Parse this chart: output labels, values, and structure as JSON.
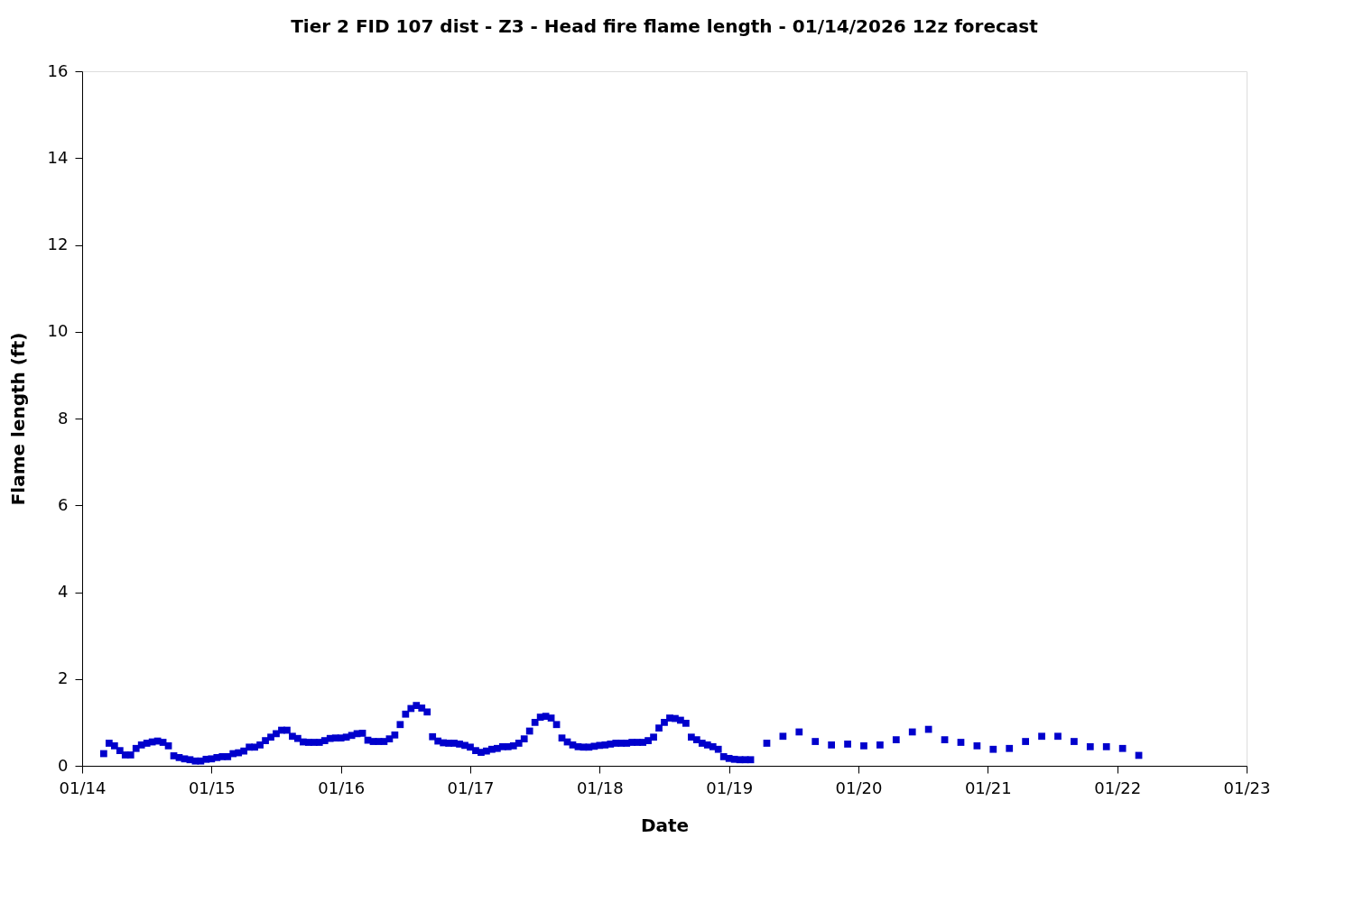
{
  "chart_data": {
    "type": "scatter",
    "title": "Tier 2 FID 107 dist - Z3 - Head fire flame length - 01/14/2026 12z forecast",
    "xlabel": "Date",
    "ylabel": "Flame length (ft)",
    "x": [
      "2026-01-14T04:00",
      "2026-01-14T05:00",
      "2026-01-14T06:00",
      "2026-01-14T07:00",
      "2026-01-14T08:00",
      "2026-01-14T09:00",
      "2026-01-14T10:00",
      "2026-01-14T11:00",
      "2026-01-14T12:00",
      "2026-01-14T13:00",
      "2026-01-14T14:00",
      "2026-01-14T15:00",
      "2026-01-14T16:00",
      "2026-01-14T17:00",
      "2026-01-14T18:00",
      "2026-01-14T19:00",
      "2026-01-14T20:00",
      "2026-01-14T21:00",
      "2026-01-14T22:00",
      "2026-01-14T23:00",
      "2026-01-15T00:00",
      "2026-01-15T01:00",
      "2026-01-15T02:00",
      "2026-01-15T03:00",
      "2026-01-15T04:00",
      "2026-01-15T05:00",
      "2026-01-15T06:00",
      "2026-01-15T07:00",
      "2026-01-15T08:00",
      "2026-01-15T09:00",
      "2026-01-15T10:00",
      "2026-01-15T11:00",
      "2026-01-15T12:00",
      "2026-01-15T13:00",
      "2026-01-15T14:00",
      "2026-01-15T15:00",
      "2026-01-15T16:00",
      "2026-01-15T17:00",
      "2026-01-15T18:00",
      "2026-01-15T19:00",
      "2026-01-15T20:00",
      "2026-01-15T21:00",
      "2026-01-15T22:00",
      "2026-01-15T23:00",
      "2026-01-16T00:00",
      "2026-01-16T01:00",
      "2026-01-16T02:00",
      "2026-01-16T03:00",
      "2026-01-16T04:00",
      "2026-01-16T05:00",
      "2026-01-16T06:00",
      "2026-01-16T07:00",
      "2026-01-16T08:00",
      "2026-01-16T09:00",
      "2026-01-16T10:00",
      "2026-01-16T11:00",
      "2026-01-16T12:00",
      "2026-01-16T13:00",
      "2026-01-16T14:00",
      "2026-01-16T15:00",
      "2026-01-16T16:00",
      "2026-01-16T17:00",
      "2026-01-16T18:00",
      "2026-01-16T19:00",
      "2026-01-16T20:00",
      "2026-01-16T21:00",
      "2026-01-16T22:00",
      "2026-01-16T23:00",
      "2026-01-17T00:00",
      "2026-01-17T01:00",
      "2026-01-17T02:00",
      "2026-01-17T03:00",
      "2026-01-17T04:00",
      "2026-01-17T05:00",
      "2026-01-17T06:00",
      "2026-01-17T07:00",
      "2026-01-17T08:00",
      "2026-01-17T09:00",
      "2026-01-17T10:00",
      "2026-01-17T11:00",
      "2026-01-17T12:00",
      "2026-01-17T13:00",
      "2026-01-17T14:00",
      "2026-01-17T15:00",
      "2026-01-17T16:00",
      "2026-01-17T17:00",
      "2026-01-17T18:00",
      "2026-01-17T19:00",
      "2026-01-17T20:00",
      "2026-01-17T21:00",
      "2026-01-17T22:00",
      "2026-01-17T23:00",
      "2026-01-18T00:00",
      "2026-01-18T01:00",
      "2026-01-18T02:00",
      "2026-01-18T03:00",
      "2026-01-18T04:00",
      "2026-01-18T05:00",
      "2026-01-18T06:00",
      "2026-01-18T07:00",
      "2026-01-18T08:00",
      "2026-01-18T09:00",
      "2026-01-18T10:00",
      "2026-01-18T11:00",
      "2026-01-18T12:00",
      "2026-01-18T13:00",
      "2026-01-18T14:00",
      "2026-01-18T15:00",
      "2026-01-18T16:00",
      "2026-01-18T17:00",
      "2026-01-18T18:00",
      "2026-01-18T19:00",
      "2026-01-18T20:00",
      "2026-01-18T21:00",
      "2026-01-18T22:00",
      "2026-01-18T23:00",
      "2026-01-19T00:00",
      "2026-01-19T01:00",
      "2026-01-19T02:00",
      "2026-01-19T03:00",
      "2026-01-19T04:00",
      "2026-01-19T07:00",
      "2026-01-19T10:00",
      "2026-01-19T13:00",
      "2026-01-19T16:00",
      "2026-01-19T19:00",
      "2026-01-19T22:00",
      "2026-01-20T01:00",
      "2026-01-20T04:00",
      "2026-01-20T07:00",
      "2026-01-20T10:00",
      "2026-01-20T13:00",
      "2026-01-20T16:00",
      "2026-01-20T19:00",
      "2026-01-20T22:00",
      "2026-01-21T01:00",
      "2026-01-21T04:00",
      "2026-01-21T07:00",
      "2026-01-21T10:00",
      "2026-01-21T13:00",
      "2026-01-21T16:00",
      "2026-01-21T19:00",
      "2026-01-21T22:00",
      "2026-01-22T01:00",
      "2026-01-22T04:00"
    ],
    "series": [
      {
        "color": "#0000cc",
        "values": [
          0.28,
          0.52,
          0.46,
          0.35,
          0.25,
          0.25,
          0.4,
          0.48,
          0.52,
          0.55,
          0.57,
          0.54,
          0.46,
          0.23,
          0.19,
          0.16,
          0.14,
          0.11,
          0.11,
          0.15,
          0.16,
          0.19,
          0.21,
          0.21,
          0.28,
          0.3,
          0.34,
          0.43,
          0.43,
          0.48,
          0.58,
          0.66,
          0.74,
          0.82,
          0.82,
          0.68,
          0.63,
          0.55,
          0.54,
          0.54,
          0.54,
          0.58,
          0.63,
          0.64,
          0.64,
          0.66,
          0.7,
          0.74,
          0.75,
          0.59,
          0.56,
          0.56,
          0.56,
          0.62,
          0.71,
          0.95,
          1.19,
          1.32,
          1.39,
          1.33,
          1.24,
          0.67,
          0.57,
          0.53,
          0.52,
          0.52,
          0.5,
          0.47,
          0.43,
          0.35,
          0.31,
          0.34,
          0.38,
          0.4,
          0.44,
          0.44,
          0.46,
          0.52,
          0.62,
          0.8,
          1.0,
          1.12,
          1.14,
          1.1,
          0.95,
          0.64,
          0.55,
          0.48,
          0.44,
          0.43,
          0.43,
          0.45,
          0.47,
          0.48,
          0.5,
          0.52,
          0.52,
          0.52,
          0.54,
          0.54,
          0.54,
          0.58,
          0.66,
          0.87,
          1.0,
          1.1,
          1.09,
          1.05,
          0.98,
          0.66,
          0.6,
          0.52,
          0.48,
          0.44,
          0.38,
          0.21,
          0.17,
          0.15,
          0.14,
          0.14,
          0.14,
          0.52,
          0.68,
          0.78,
          0.56,
          0.48,
          0.5,
          0.46,
          0.48,
          0.6,
          0.78,
          0.84,
          0.6,
          0.54,
          0.46,
          0.38,
          0.4,
          0.56,
          0.68,
          0.68,
          0.56,
          0.44,
          0.44,
          0.4,
          0.24
        ]
      }
    ],
    "xlim": [
      "2026-01-14",
      "2026-01-23"
    ],
    "xticks": [
      {
        "value": "2026-01-14",
        "label": "01/14"
      },
      {
        "value": "2026-01-15",
        "label": "01/15"
      },
      {
        "value": "2026-01-16",
        "label": "01/16"
      },
      {
        "value": "2026-01-17",
        "label": "01/17"
      },
      {
        "value": "2026-01-18",
        "label": "01/18"
      },
      {
        "value": "2026-01-19",
        "label": "01/19"
      },
      {
        "value": "2026-01-20",
        "label": "01/20"
      },
      {
        "value": "2026-01-21",
        "label": "01/21"
      },
      {
        "value": "2026-01-22",
        "label": "01/22"
      },
      {
        "value": "2026-01-23",
        "label": "01/23"
      }
    ],
    "ylim": [
      0,
      16
    ],
    "yticks": [
      0,
      2,
      4,
      6,
      8,
      10,
      12,
      14,
      16
    ],
    "marker": "square",
    "grid": false
  }
}
